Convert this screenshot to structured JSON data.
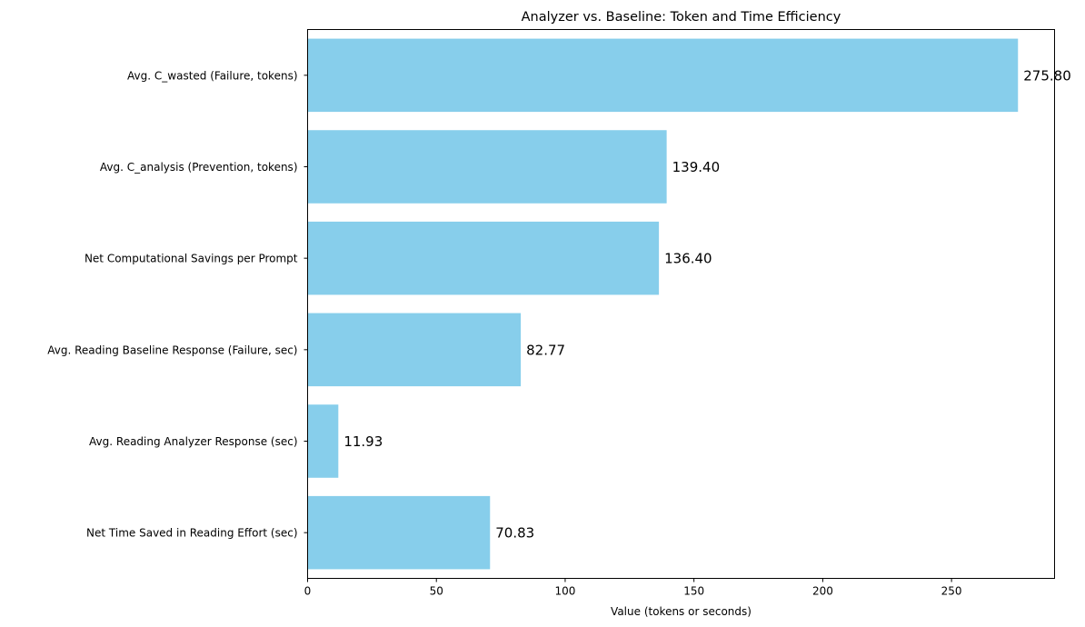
{
  "chart_data": {
    "type": "bar",
    "orientation": "horizontal",
    "title": "Analyzer vs. Baseline: Token and Time Efficiency",
    "xlabel": "Value (tokens or seconds)",
    "ylabel": "",
    "xlim": [
      0,
      290
    ],
    "xticks": [
      0,
      50,
      100,
      150,
      200,
      250
    ],
    "grid": false,
    "bar_color": "#87CEEB",
    "categories": [
      "Avg. C_wasted (Failure, tokens)",
      "Avg. C_analysis (Prevention, tokens)",
      "Net Computational Savings per Prompt",
      "Avg. Reading Baseline Response (Failure, sec)",
      "Avg. Reading Analyzer Response (sec)",
      "Net Time Saved in Reading Effort (sec)"
    ],
    "values": [
      275.8,
      139.4,
      136.4,
      82.77,
      11.93,
      70.83
    ],
    "value_labels": [
      "275.80",
      "139.40",
      "136.40",
      "82.77",
      "11.93",
      "70.83"
    ]
  }
}
